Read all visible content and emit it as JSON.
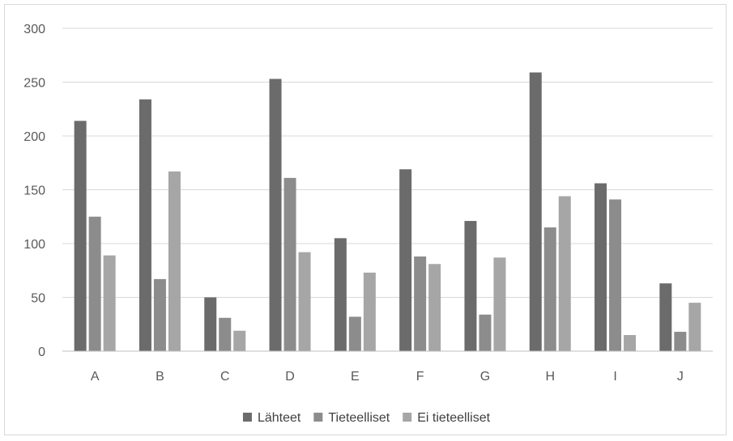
{
  "chart_data": {
    "type": "bar",
    "title": "",
    "xlabel": "",
    "ylabel": "",
    "categories": [
      "A",
      "B",
      "C",
      "D",
      "E",
      "F",
      "G",
      "H",
      "I",
      "J"
    ],
    "ylim": [
      0,
      300
    ],
    "yticks": [
      0,
      50,
      100,
      150,
      200,
      250,
      300
    ],
    "grid": true,
    "legend_position": "bottom",
    "series": [
      {
        "name": "Lähteet",
        "color": "#6b6b6b",
        "values": [
          214,
          234,
          50,
          253,
          105,
          169,
          121,
          259,
          156,
          63
        ]
      },
      {
        "name": "Tieteelliset",
        "color": "#8c8c8c",
        "values": [
          125,
          67,
          31,
          161,
          32,
          88,
          34,
          115,
          141,
          18
        ]
      },
      {
        "name": "Ei tieteelliset",
        "color": "#a6a6a6",
        "values": [
          89,
          167,
          19,
          92,
          73,
          81,
          87,
          144,
          15,
          45
        ]
      }
    ]
  }
}
